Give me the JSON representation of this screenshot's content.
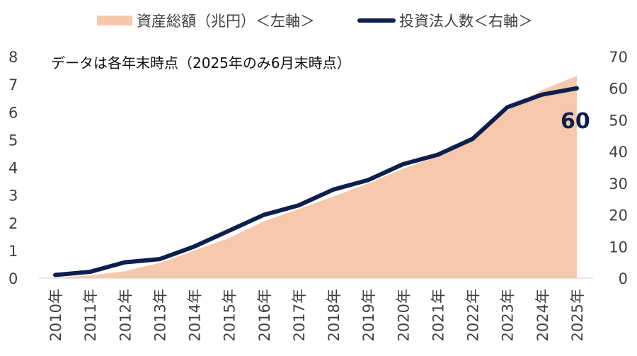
{
  "chart_data": {
    "type": "area+line",
    "note": "データは各年末時点（2025年のみ6月末時点）",
    "categories": [
      "2010年",
      "2011年",
      "2012年",
      "2013年",
      "2014年",
      "2015年",
      "2016年",
      "2017年",
      "2018年",
      "2019年",
      "2020年",
      "2021年",
      "2022年",
      "2023年",
      "2024年",
      "2025年"
    ],
    "series": [
      {
        "name": "資産総額（兆円）＜左軸＞",
        "kind": "area",
        "axis": "left",
        "color": "#f6c9ac",
        "values": [
          0.01,
          0.1,
          0.25,
          0.55,
          1.0,
          1.45,
          2.05,
          2.5,
          2.95,
          3.42,
          3.95,
          4.4,
          5.0,
          6.05,
          6.8,
          7.3
        ]
      },
      {
        "name": "投資法人数＜右軸＞",
        "kind": "line",
        "axis": "right",
        "color": "#0d1f4d",
        "values": [
          1,
          2,
          5,
          6,
          10,
          15,
          20,
          23,
          28,
          31,
          36,
          39,
          44,
          54,
          58,
          60
        ]
      }
    ],
    "y_left": {
      "ylim": [
        0,
        8
      ],
      "ticks": [
        "0",
        "1",
        "2",
        "3",
        "4",
        "5",
        "6",
        "7",
        "8"
      ]
    },
    "y_right": {
      "ylim": [
        0,
        70
      ],
      "ticks": [
        "0",
        "10",
        "20",
        "30",
        "40",
        "50",
        "60",
        "70"
      ]
    },
    "callout": "60",
    "legend_position": "top-center",
    "grid": false
  }
}
